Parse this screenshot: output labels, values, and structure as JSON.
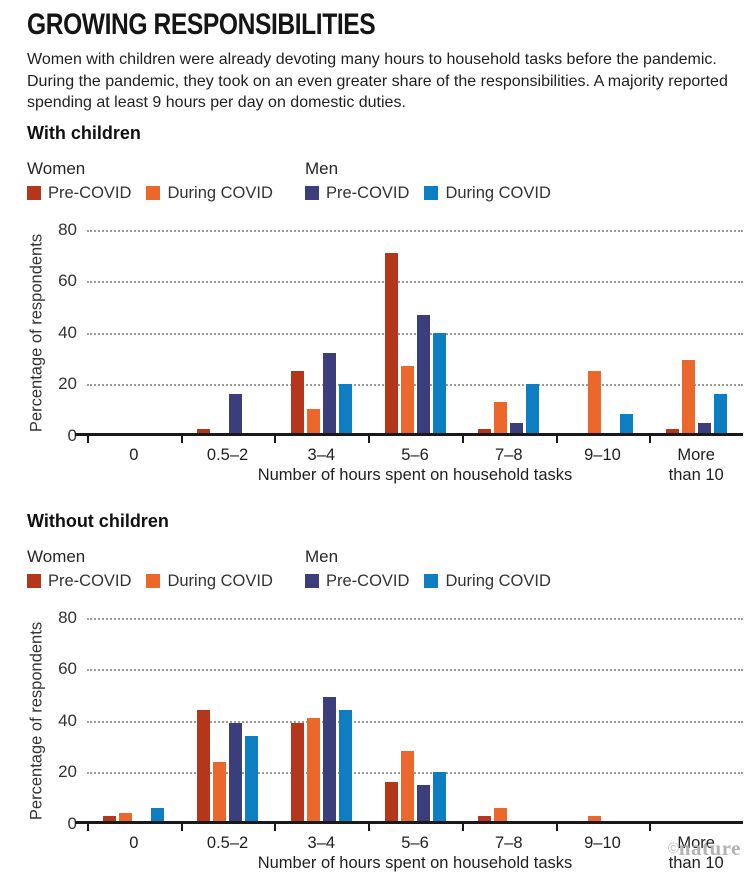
{
  "header": {
    "title": "GROWING RESPONSIBILITIES",
    "description": "Women with children were already devoting many hours to household tasks before the pandemic. During the pandemic, they took on an even greater share of the responsibilities. A majority reported spending at least 9 hours per day on domestic duties."
  },
  "legend": {
    "groups": [
      {
        "label": "Women",
        "items": [
          {
            "label": "Pre-COVID",
            "color": "#b5371b"
          },
          {
            "label": "During COVID",
            "color": "#ec672c"
          }
        ]
      },
      {
        "label": "Men",
        "items": [
          {
            "label": "Pre-COVID",
            "color": "#3c3e7c"
          },
          {
            "label": "During COVID",
            "color": "#0d7ec1"
          }
        ]
      }
    ]
  },
  "chart_data": [
    {
      "type": "bar",
      "title": "With children",
      "categories": [
        "0",
        "0.5–2",
        "3–4",
        "5–6",
        "7–8",
        "9–10",
        "More than 10"
      ],
      "series": [
        {
          "name": "Women Pre-COVID",
          "color": "#b5371b",
          "values": [
            0,
            1.5,
            24,
            70,
            1.5,
            0,
            1.5
          ]
        },
        {
          "name": "Women During COVID",
          "color": "#ec672c",
          "values": [
            0,
            0,
            9.5,
            26,
            12,
            24,
            28.5
          ]
        },
        {
          "name": "Men Pre-COVID",
          "color": "#3c3e7c",
          "values": [
            0,
            15,
            31,
            46,
            4,
            0,
            4
          ]
        },
        {
          "name": "Men During COVID",
          "color": "#0d7ec1",
          "values": [
            0,
            0,
            19,
            39,
            19,
            7.5,
            15
          ]
        }
      ],
      "ylabel": "Percentage of respondents",
      "xlabel": "Number of hours spent on household tasks",
      "ylim": [
        0,
        80
      ],
      "yticks": [
        0,
        20,
        40,
        60,
        80
      ],
      "grid": "horizontal-dotted",
      "legend_position": "top-left"
    },
    {
      "type": "bar",
      "title": "Without children",
      "categories": [
        "0",
        "0.5–2",
        "3–4",
        "5–6",
        "7–8",
        "9–10",
        "More than 10"
      ],
      "series": [
        {
          "name": "Women Pre-COVID",
          "color": "#b5371b",
          "values": [
            2,
            43,
            38,
            15,
            2,
            0,
            0
          ]
        },
        {
          "name": "Women During COVID",
          "color": "#ec672c",
          "values": [
            3,
            23,
            40,
            27,
            5,
            2,
            0
          ]
        },
        {
          "name": "Men Pre-COVID",
          "color": "#3c3e7c",
          "values": [
            0,
            38,
            48,
            14,
            0,
            0,
            0
          ]
        },
        {
          "name": "Men During COVID",
          "color": "#0d7ec1",
          "values": [
            5,
            33,
            43,
            19,
            0,
            0,
            0
          ]
        }
      ],
      "ylabel": "Percentage of respondents",
      "xlabel": "Number of hours spent on household tasks",
      "ylim": [
        0,
        80
      ],
      "yticks": [
        0,
        20,
        40,
        60,
        80
      ],
      "grid": "horizontal-dotted",
      "legend_position": "top-left"
    }
  ],
  "footer": {
    "credit_symbol": "©",
    "credit_name": "nature"
  }
}
